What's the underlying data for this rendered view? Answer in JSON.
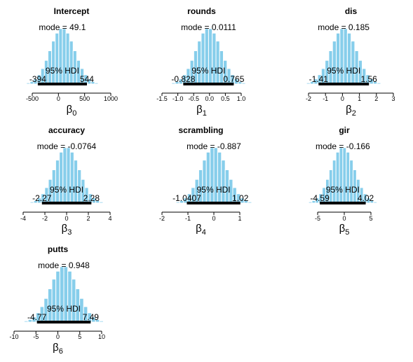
{
  "hdi_label": "95% HDI",
  "mode_prefix": "mode",
  "chart_data": [
    {
      "type": "histogram",
      "title": "Intercept",
      "xlabel": "β0",
      "symbol": "β",
      "subscript": "0",
      "xlim": [
        -500,
        1000
      ],
      "ticks": [
        -500,
        0,
        500,
        1000
      ],
      "mode": 49.1,
      "mode_label": "49.1",
      "hdi": [
        -394,
        544
      ],
      "hdi_labels": [
        "-394",
        "544"
      ],
      "center": 75,
      "sd": 235
    },
    {
      "type": "histogram",
      "title": "rounds",
      "xlabel": "β1",
      "symbol": "β",
      "subscript": "1",
      "xlim": [
        -1.5,
        1.0
      ],
      "ticks": [
        -1.5,
        -1.0,
        -0.5,
        0.0,
        0.5,
        1.0
      ],
      "mode": 0.0111,
      "mode_label": "0.0111",
      "hdi": [
        -0.828,
        0.765
      ],
      "hdi_labels": [
        "-0.828",
        "0.765"
      ],
      "center": -0.03,
      "sd": 0.4
    },
    {
      "type": "histogram",
      "title": "dis",
      "xlabel": "β2",
      "symbol": "β",
      "subscript": "2",
      "xlim": [
        -2,
        3
      ],
      "ticks": [
        -2,
        -1,
        0,
        1,
        2,
        3
      ],
      "mode": 0.185,
      "mode_label": "0.185",
      "hdi": [
        -1.41,
        1.56
      ],
      "hdi_labels": [
        "-1.41",
        "1.56"
      ],
      "center": 0.07,
      "sd": 0.75
    },
    {
      "type": "histogram",
      "title": "accuracy",
      "xlabel": "β3",
      "symbol": "β",
      "subscript": "3",
      "xlim": [
        -4,
        4
      ],
      "ticks": [
        -4,
        -2,
        0,
        2,
        4
      ],
      "mode": -0.0764,
      "mode_label": "-0.0764",
      "hdi": [
        -2.27,
        2.28
      ],
      "hdi_labels": [
        "-2.27",
        "2.28"
      ],
      "center": 0.0,
      "sd": 1.15
    },
    {
      "type": "histogram",
      "title": "scrambling",
      "xlabel": "β4",
      "symbol": "β",
      "subscript": "4",
      "xlim": [
        -2,
        1
      ],
      "ticks": [
        -2,
        -1,
        0,
        1
      ],
      "mode": -0.887,
      "mode_label": "-0.887",
      "hdi": [
        -1.0407,
        1.02
      ],
      "hdi_labels": [
        "-1.0407",
        "1.02"
      ],
      "center": 0.0,
      "sd": 0.5
    },
    {
      "type": "histogram",
      "title": "gir",
      "xlabel": "β5",
      "symbol": "β",
      "subscript": "5",
      "xlim": [
        -5,
        5
      ],
      "ticks": [
        -5,
        0,
        5
      ],
      "mode": -0.166,
      "mode_label": "-0.166",
      "hdi": [
        -4.59,
        4.02
      ],
      "hdi_labels": [
        "-4.59",
        "4.02"
      ],
      "center": -0.28,
      "sd": 2.2
    },
    {
      "type": "histogram",
      "title": "putts",
      "xlabel": "β6",
      "symbol": "β",
      "subscript": "6",
      "xlim": [
        -10,
        10
      ],
      "ticks": [
        -10,
        -5,
        0,
        5,
        10
      ],
      "mode": 0.948,
      "mode_label": "0.948",
      "hdi": [
        -4.77,
        7.49
      ],
      "hdi_labels": [
        "-4.77",
        "7.49"
      ],
      "center": 1.36,
      "sd": 3.1
    }
  ]
}
